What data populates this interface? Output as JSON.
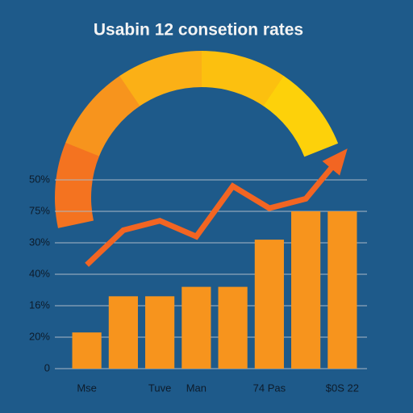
{
  "chart_data": {
    "type": "bar",
    "title": "Usabin 12 consetion rates",
    "categories": [
      "Mse",
      null,
      "Tuve",
      "Man",
      null,
      "74 Pas",
      null,
      "$0S 22"
    ],
    "series": [
      {
        "type": "bar",
        "color": "#f7941d",
        "values": [
          1.15,
          2.3,
          2.3,
          2.6,
          2.6,
          4.1,
          5.0,
          5.0
        ]
      },
      {
        "type": "line",
        "color": "#f26522",
        "values": [
          3.3,
          4.4,
          4.7,
          4.2,
          5.8,
          5.1,
          5.4,
          6.8
        ]
      }
    ],
    "ylim": [
      0,
      6
    ],
    "yticks": [
      {
        "value": 0,
        "label": "0"
      },
      {
        "value": 1,
        "label": "20%"
      },
      {
        "value": 2,
        "label": "16%"
      },
      {
        "value": 3,
        "label": "40%"
      },
      {
        "value": 4,
        "label": "30%"
      },
      {
        "value": 5,
        "label": "75%"
      },
      {
        "value": 6,
        "label": "50%"
      }
    ],
    "grid": true
  }
}
